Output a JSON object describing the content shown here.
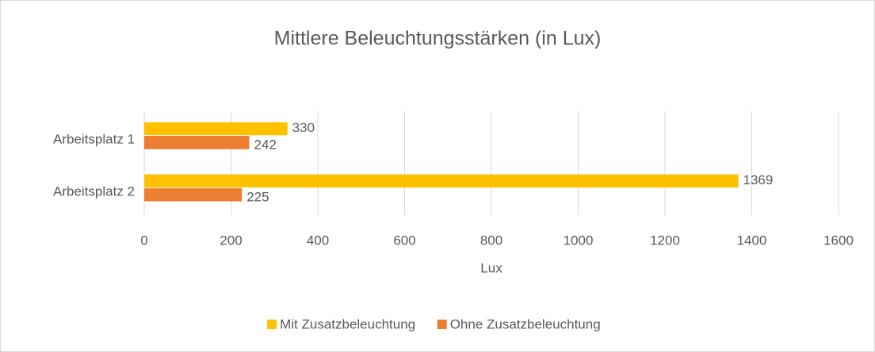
{
  "chart_data": {
    "type": "bar",
    "title": "Mittlere Beleuchtungsstärken (in Lux)",
    "categories": [
      "Arbeitsplatz 1",
      "Arbeitsplatz 2"
    ],
    "series": [
      {
        "name": "Mit Zusatzbeleuchtung",
        "color": "#FFC000",
        "values": [
          330,
          1369
        ]
      },
      {
        "name": "Ohne Zusatzbeleuchtung",
        "color": "#ED7D31",
        "values": [
          242,
          225
        ]
      }
    ],
    "xlabel": "Lux",
    "xlim": [
      0,
      1600
    ],
    "xticks": [
      0,
      200,
      400,
      600,
      800,
      1000,
      1200,
      1400,
      1600
    ],
    "grid": true,
    "legend": "bottom"
  }
}
